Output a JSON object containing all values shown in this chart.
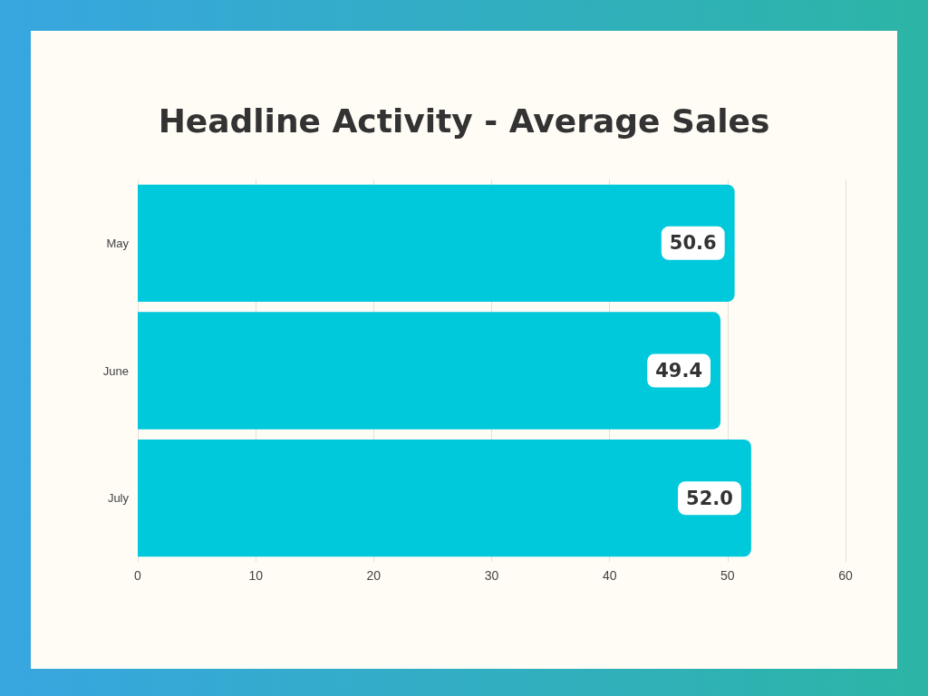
{
  "chart_data": {
    "type": "bar",
    "title": "Headline Activity - Average Sales",
    "orientation": "horizontal",
    "categories": [
      "May",
      "June",
      "July"
    ],
    "values": [
      50.6,
      49.4,
      52.0
    ],
    "value_labels": [
      "50.6",
      "49.4",
      "52.0"
    ],
    "color": "#00c9dc",
    "xlim": [
      0,
      60
    ],
    "xticks": [
      0,
      10,
      20,
      30,
      40,
      50,
      60
    ],
    "grid": "x"
  }
}
